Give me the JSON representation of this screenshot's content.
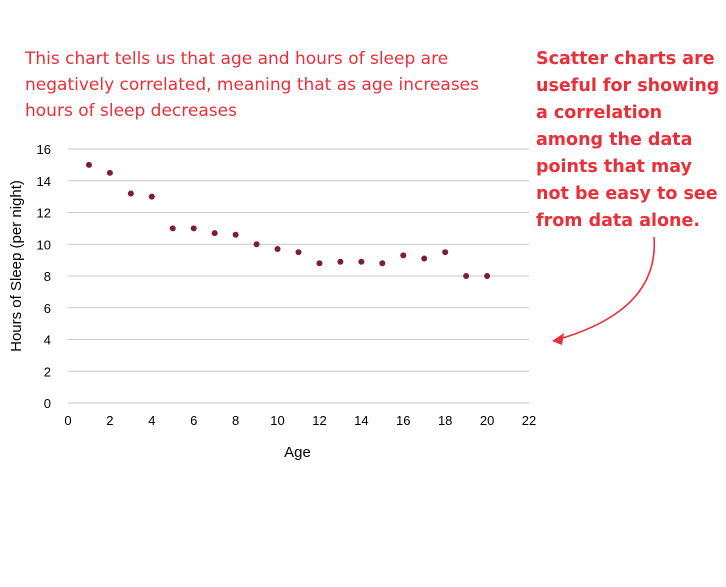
{
  "annotations": {
    "left": "This chart tells us that age and hours of sleep are negatively correlated, meaning that as age increases hours of sleep decreases",
    "right": "Scatter charts are useful for showing a correlation among the data points that may not be easy to see from data alone."
  },
  "colors": {
    "annotation": "#e8303a",
    "point": "#7b1c45",
    "grid": "#c8c8c8"
  },
  "chart_data": {
    "type": "scatter",
    "title": "",
    "xlabel": "Age",
    "ylabel": "Hours of Sleep (per night)",
    "xlim": [
      0,
      22
    ],
    "ylim": [
      0,
      16
    ],
    "x_ticks": [
      0,
      2,
      4,
      6,
      8,
      10,
      12,
      14,
      16,
      18,
      20,
      22
    ],
    "y_ticks": [
      0,
      2,
      4,
      6,
      8,
      10,
      12,
      14,
      16
    ],
    "grid": "horizontal",
    "legend": "none",
    "points": [
      {
        "x": 1,
        "y": 15.0
      },
      {
        "x": 2,
        "y": 14.5
      },
      {
        "x": 3,
        "y": 13.2
      },
      {
        "x": 4,
        "y": 13.0
      },
      {
        "x": 5,
        "y": 11.0
      },
      {
        "x": 6,
        "y": 11.0
      },
      {
        "x": 7,
        "y": 10.7
      },
      {
        "x": 8,
        "y": 10.6
      },
      {
        "x": 9,
        "y": 10.0
      },
      {
        "x": 10,
        "y": 9.7
      },
      {
        "x": 11,
        "y": 9.5
      },
      {
        "x": 12,
        "y": 8.8
      },
      {
        "x": 13,
        "y": 8.9
      },
      {
        "x": 14,
        "y": 8.9
      },
      {
        "x": 15,
        "y": 8.8
      },
      {
        "x": 16,
        "y": 9.3
      },
      {
        "x": 17,
        "y": 9.1
      },
      {
        "x": 18,
        "y": 9.5
      },
      {
        "x": 19,
        "y": 8.0
      },
      {
        "x": 20,
        "y": 8.0
      }
    ]
  }
}
